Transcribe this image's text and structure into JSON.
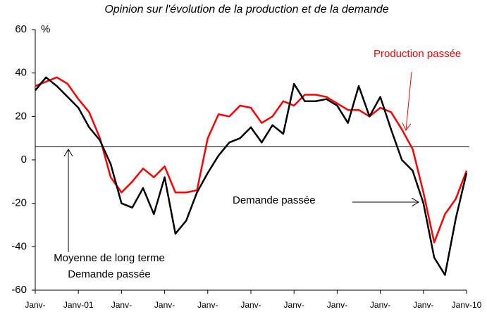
{
  "chart_data": {
    "type": "line",
    "title": "Opinion sur l'évolution de  la production et de la demande",
    "y_label": "%",
    "categories": [
      "Janv-",
      null,
      null,
      null,
      "Janv-01",
      null,
      null,
      null,
      "Janv-",
      null,
      null,
      null,
      "Janv-",
      null,
      null,
      null,
      "Janv-",
      null,
      null,
      null,
      "Janv-",
      null,
      null,
      null,
      "Janv-",
      null,
      null,
      null,
      "Janv-",
      null,
      null,
      null,
      "Janv-",
      null,
      null,
      null,
      "Janv-",
      null,
      null,
      null,
      "Janv-10"
    ],
    "series": [
      {
        "name": "Production passée",
        "color": "#ff0000",
        "values": [
          34,
          36,
          38,
          35,
          28,
          22,
          10,
          -8,
          -15,
          -10,
          -4,
          -8,
          -3,
          -15,
          -15,
          -14,
          10,
          21,
          20,
          25,
          24,
          17,
          20,
          27,
          25,
          30,
          30,
          29,
          26,
          23,
          23,
          20,
          24,
          22,
          14,
          5,
          -15,
          -38,
          -25,
          -18,
          -5
        ]
      },
      {
        "name": "Demande passée",
        "color": "#000000",
        "values": [
          32,
          38,
          34,
          29,
          24,
          15,
          9,
          -2,
          -20,
          -22,
          -13,
          -25,
          -8,
          -34,
          -28,
          -15,
          -6,
          2,
          8,
          10,
          15,
          8,
          16,
          12,
          35,
          27,
          27,
          28,
          25,
          17,
          34,
          20,
          29,
          14,
          0,
          -5,
          -20,
          -45,
          -53,
          -27,
          -6
        ]
      }
    ],
    "reference_line": 6,
    "annotations": [
      "Moyenne de long terme",
      "Demande passée"
    ],
    "ylim": [
      -60,
      60
    ],
    "yticks": [
      -60,
      -40,
      -20,
      0,
      20,
      40,
      60
    ],
    "grid": false
  }
}
